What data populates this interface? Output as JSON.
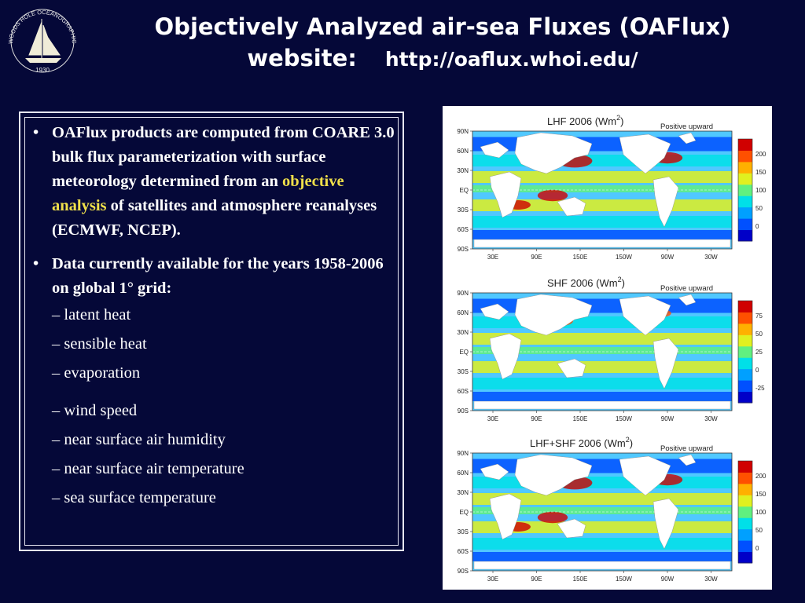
{
  "logo": {
    "text": "WOODS HOLE OCEANOGRAPHIC INSTITUTION",
    "year": "1930"
  },
  "header": {
    "title_line1": "Objectively Analyzed air-sea Fluxes (OAFlux)",
    "title_line2": "website:",
    "url": "http://oaflux.whoi.edu/"
  },
  "bullets": {
    "b1_part1": "OAFlux products are computed from COARE 3.0 bulk flux parameterization with surface meteorology determined from an ",
    "b1_highlight": "objective analysis",
    "b1_part2": " of satellites and atmosphere reanalyses (ECMWF, NCEP).",
    "b2": "Data currently available for the years 1958-2006 on global 1° grid:",
    "sub_items": [
      "– latent heat",
      "– sensible heat",
      "– evaporation",
      "– wind speed",
      "– near surface air humidity",
      "– near surface air temperature",
      "– sea surface temperature"
    ]
  },
  "maps": [
    {
      "title": "LHF 2006  (Wm",
      "note": "Positive upward",
      "colorbar": [
        "200",
        "150",
        "100",
        "50",
        "0"
      ]
    },
    {
      "title": "SHF 2006  (Wm",
      "note": "Positive upward",
      "colorbar": [
        "75",
        "50",
        "25",
        "0",
        "-25"
      ]
    },
    {
      "title": "LHF+SHF 2006  (Wm",
      "note": "Positive upward",
      "colorbar": [
        "200",
        "150",
        "100",
        "50",
        "0"
      ]
    }
  ],
  "map_axes": {
    "lat": [
      "90N",
      "60N",
      "30N",
      "EQ",
      "30S",
      "60S",
      "90S"
    ],
    "lon": [
      "30E",
      "90E",
      "150E",
      "150W",
      "90W",
      "30W"
    ]
  },
  "colors": {
    "background": "#050838",
    "highlight": "#f0e04a",
    "text": "#ffffff"
  }
}
